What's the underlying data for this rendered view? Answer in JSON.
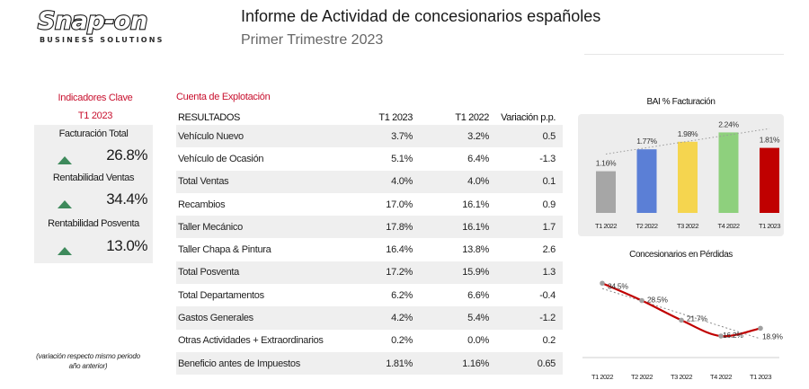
{
  "header": {
    "logo_text": "Snap-on",
    "logo_subtitle": "BUSINESS SOLUTIONS",
    "title": "Informe de Actividad de concesionarios españoles",
    "subtitle": "Primer Trimestre 2023"
  },
  "kpi": {
    "heading_line1": "Indicadores Clave",
    "heading_line2": "T1 2023",
    "items": [
      {
        "label": "Facturación Total",
        "value": "26.8%",
        "trend": "up"
      },
      {
        "label": "Rentabilidad Ventas",
        "value": "34.4%",
        "trend": "up"
      },
      {
        "label": "Rentabilidad Posventa",
        "value": "13.0%",
        "trend": "up"
      }
    ],
    "note": "(variación respecto mismo periodo año anterior)",
    "colors": {
      "accent": "#c8102e",
      "up_arrow": "#3e8a5c",
      "panel": "#efefef"
    }
  },
  "table": {
    "title": "Cuenta de Explotación",
    "headers": [
      "RESULTADOS",
      "T1 2023",
      "T1 2022",
      "Variación p.p."
    ],
    "rows": [
      [
        "Vehículo Nuevo",
        "3.7%",
        "3.2%",
        "0.5"
      ],
      [
        "Vehículo de Ocasión",
        "5.1%",
        "6.4%",
        "-1.3"
      ],
      [
        "Total Ventas",
        "4.0%",
        "4.0%",
        "0.1"
      ],
      [
        "Recambios",
        "17.0%",
        "16.1%",
        "0.9"
      ],
      [
        "Taller Mecánico",
        "17.8%",
        "16.1%",
        "1.7"
      ],
      [
        "Taller Chapa & Pintura",
        "16.4%",
        "13.8%",
        "2.6"
      ],
      [
        "Total Posventa",
        "17.2%",
        "15.9%",
        "1.3"
      ],
      [
        "Total Departamentos",
        "6.2%",
        "6.6%",
        "-0.4"
      ],
      [
        "Gastos Generales",
        "4.2%",
        "5.4%",
        "-1.2"
      ],
      [
        "Otras Actividades + Extraordinarios",
        "0.2%",
        "0.0%",
        "0.2"
      ],
      [
        "Beneficio antes de Impuestos",
        "1.81%",
        "1.16%",
        "0.65"
      ]
    ]
  },
  "chart_data": [
    {
      "type": "bar",
      "title": "BAI % Facturación",
      "categories": [
        "T1 2022",
        "T2 2022",
        "T3 2022",
        "T4 2022",
        "T1 2023"
      ],
      "values": [
        1.16,
        1.77,
        1.98,
        2.24,
        1.81
      ],
      "labels": [
        "1.16%",
        "1.77%",
        "1.98%",
        "2.24%",
        "1.81%"
      ],
      "bar_colors": [
        "#a6a6a6",
        "#5b7fd6",
        "#f5d54f",
        "#8ed07d",
        "#c00000"
      ],
      "trendline": true,
      "ylim": [
        0,
        2.6
      ]
    },
    {
      "type": "line",
      "title": "Concesionarios en Pérdidas",
      "categories": [
        "T1 2022",
        "T2 2022",
        "T3 2022",
        "T4 2022",
        "T1 2023"
      ],
      "values": [
        34.5,
        28.5,
        21.7,
        16.2,
        18.9
      ],
      "labels": [
        "34.5%",
        "28.5%",
        "21.7%",
        "16.2%",
        "18.9%"
      ],
      "line_color": "#c00000",
      "trendline": true,
      "ylim": [
        10,
        38
      ]
    }
  ]
}
